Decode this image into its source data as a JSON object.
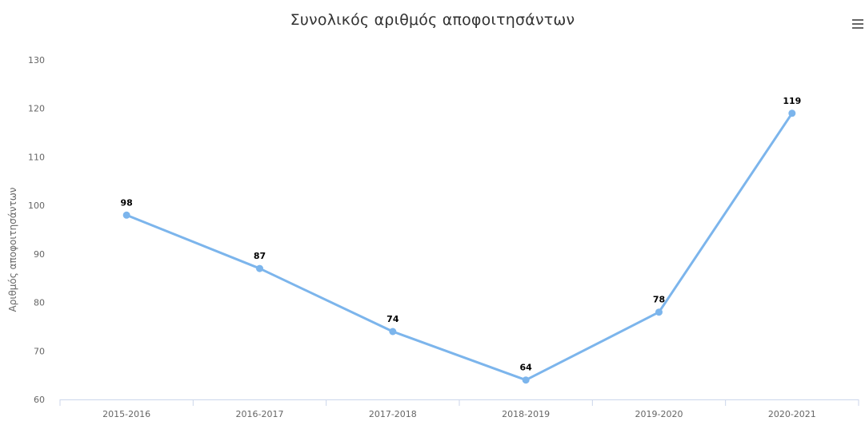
{
  "chart_data": {
    "type": "line",
    "title": "Συνολικός αριθμός αποφοιτησάντων",
    "xlabel": "",
    "ylabel": "Αριθμός αποφοιτησάντων",
    "categories": [
      "2015-2016",
      "2016-2017",
      "2017-2018",
      "2018-2019",
      "2019-2020",
      "2020-2021"
    ],
    "series": [
      {
        "values": [
          98,
          87,
          74,
          64,
          78,
          119
        ]
      }
    ],
    "ylim": [
      60,
      130
    ],
    "yticks": [
      60,
      70,
      80,
      90,
      100,
      110,
      120,
      130
    ],
    "grid": false,
    "legend": "none",
    "colors": {
      "line": "#7cb5ec",
      "axis": "#ccd6eb"
    }
  },
  "toolbar": {
    "menu_icon": "hamburger-menu-icon"
  }
}
